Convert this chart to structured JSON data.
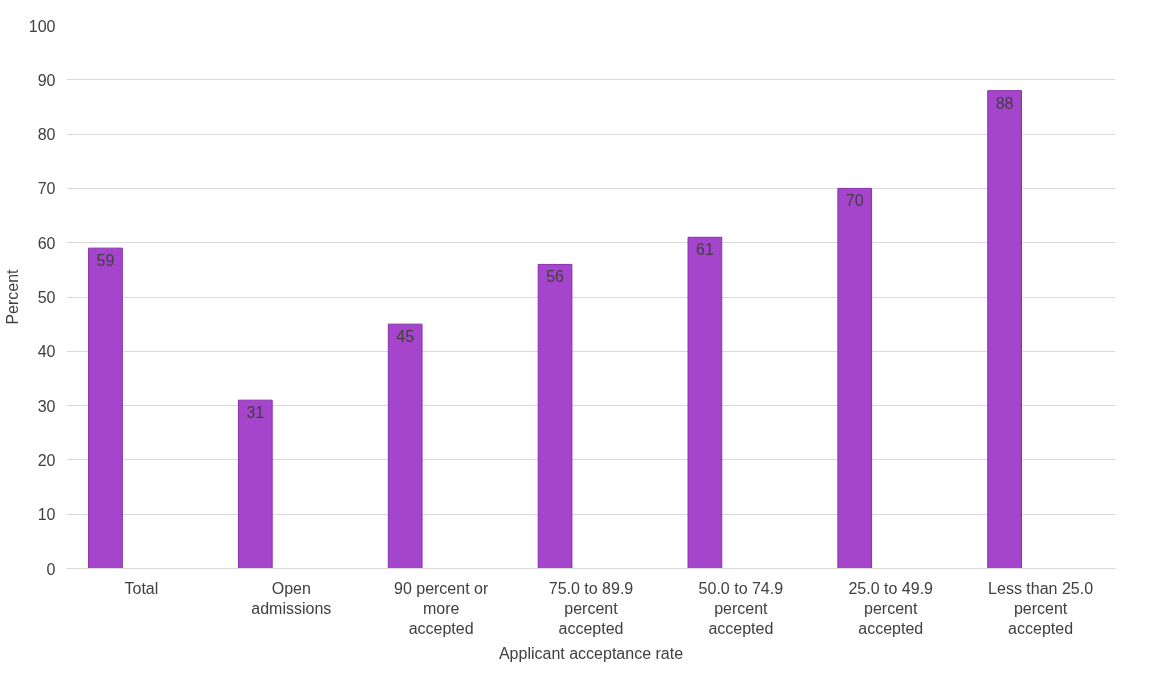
{
  "chart_data": {
    "type": "bar",
    "xlabel": "Applicant acceptance rate",
    "ylabel": "Percent",
    "categories": [
      "Total",
      "Open\nadmissions",
      "90 percent or\nmore\naccepted",
      "75.0 to 89.9\npercent\naccepted",
      "50.0 to 74.9\npercent\naccepted",
      "25.0 to 49.9\npercent\naccepted",
      "Less than 25.0\npercent\naccepted"
    ],
    "values": [
      59,
      31,
      45,
      56,
      61,
      70,
      88
    ],
    "color": "#a545cc",
    "data_labels": true,
    "ylim": [
      0,
      100
    ],
    "yticks": [
      0,
      10,
      20,
      30,
      40,
      50,
      60,
      70,
      80,
      90,
      100
    ],
    "grid": "y"
  }
}
